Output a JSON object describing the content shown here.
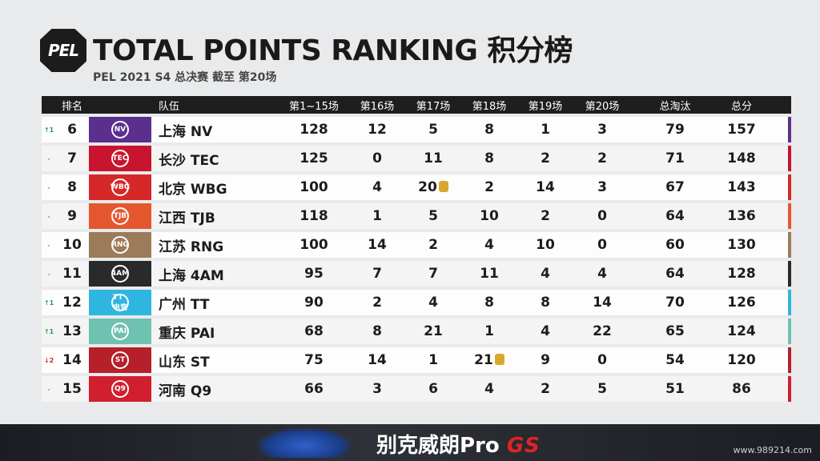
{
  "header": {
    "logo_text": "PEL",
    "title": "TOTAL POINTS RANKING 积分榜",
    "subtitle": "PEL 2021 S4 总决赛 截至 第20场"
  },
  "columns": [
    "排名",
    "队伍",
    "第1~15场",
    "第16场",
    "第17场",
    "第18场",
    "第19场",
    "第20场",
    "总淘汰",
    "总分"
  ],
  "rows": [
    {
      "change": "↑1",
      "dir": "up",
      "rank": "6",
      "team": "上海 NV",
      "logo_abbr": "NV",
      "logo_color": "#5b2f8e",
      "accent": "#5b2f8e",
      "g1_15": "128",
      "g16": "12",
      "g17": "5",
      "g18": "8",
      "g19": "1",
      "g20": "3",
      "kills": "79",
      "total": "157"
    },
    {
      "change": "-",
      "dir": "flat",
      "rank": "7",
      "team": "长沙 TEC",
      "logo_abbr": "TEC",
      "logo_color": "#c8142e",
      "accent": "#c8142e",
      "g1_15": "125",
      "g16": "0",
      "g17": "11",
      "g18": "8",
      "g19": "2",
      "g20": "2",
      "kills": "71",
      "total": "148"
    },
    {
      "change": "-",
      "dir": "flat",
      "rank": "8",
      "team": "北京 WBG",
      "logo_abbr": "WBG",
      "logo_color": "#d62828",
      "accent": "#d62828",
      "g1_15": "100",
      "g16": "4",
      "g17": "20",
      "g17_medal": true,
      "g18": "2",
      "g19": "14",
      "g20": "3",
      "kills": "67",
      "total": "143"
    },
    {
      "change": "-",
      "dir": "flat",
      "rank": "9",
      "team": "江西 TJB",
      "logo_abbr": "TJB",
      "logo_color": "#e4572e",
      "accent": "#e4572e",
      "g1_15": "118",
      "g16": "1",
      "g17": "5",
      "g18": "10",
      "g19": "2",
      "g20": "0",
      "kills": "64",
      "total": "136"
    },
    {
      "change": "-",
      "dir": "flat",
      "rank": "10",
      "team": "江苏 RNG",
      "logo_abbr": "RNG",
      "logo_color": "#9c7b5a",
      "accent": "#9c7b5a",
      "g1_15": "100",
      "g16": "14",
      "g17": "2",
      "g18": "4",
      "g19": "10",
      "g20": "0",
      "kills": "60",
      "total": "130"
    },
    {
      "change": "-",
      "dir": "flat",
      "rank": "11",
      "team": "上海 4AM",
      "logo_abbr": "4AM",
      "logo_color": "#2a2a2a",
      "accent": "#2a2a2a",
      "g1_15": "95",
      "g16": "7",
      "g17": "7",
      "g18": "11",
      "g19": "4",
      "g20": "4",
      "kills": "64",
      "total": "128"
    },
    {
      "change": "↑1",
      "dir": "up",
      "rank": "12",
      "team": "广州 TT",
      "logo_abbr": "TT电竞",
      "logo_color": "#2fb6e0",
      "accent": "#2fb6e0",
      "g1_15": "90",
      "g16": "2",
      "g17": "4",
      "g18": "8",
      "g19": "8",
      "g20": "14",
      "kills": "70",
      "total": "126"
    },
    {
      "change": "↑1",
      "dir": "up",
      "rank": "13",
      "team": "重庆 PAI",
      "logo_abbr": "PAI",
      "logo_color": "#6fc2b0",
      "accent": "#6fc2b0",
      "g1_15": "68",
      "g16": "8",
      "g17": "21",
      "g18": "1",
      "g19": "4",
      "g20": "22",
      "kills": "65",
      "total": "124"
    },
    {
      "change": "↓2",
      "dir": "down",
      "rank": "14",
      "team": "山东 ST",
      "logo_abbr": "ST",
      "logo_color": "#b5202a",
      "accent": "#b5202a",
      "g1_15": "75",
      "g16": "14",
      "g17": "1",
      "g18": "21",
      "g18_medal": true,
      "g19": "9",
      "g20": "0",
      "kills": "54",
      "total": "120"
    },
    {
      "change": "-",
      "dir": "flat",
      "rank": "15",
      "team": "河南 Q9",
      "logo_abbr": "Q9",
      "logo_color": "#d21f2f",
      "accent": "#d21f2f",
      "g1_15": "66",
      "g16": "3",
      "g17": "6",
      "g18": "4",
      "g19": "2",
      "g20": "5",
      "kills": "51",
      "total": "86"
    }
  ],
  "ad": {
    "text": "别克威朗Pro",
    "suffix": "GS"
  },
  "watermark": "www.989214.com"
}
